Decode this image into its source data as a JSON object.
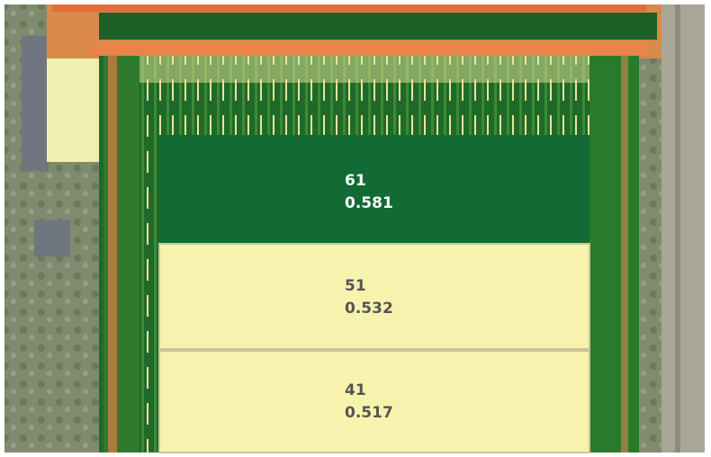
{
  "plots": [
    {
      "id": 61,
      "value": 0.581
    },
    {
      "id": 51,
      "value": 0.532
    },
    {
      "id": 41,
      "value": 0.517
    }
  ]
}
